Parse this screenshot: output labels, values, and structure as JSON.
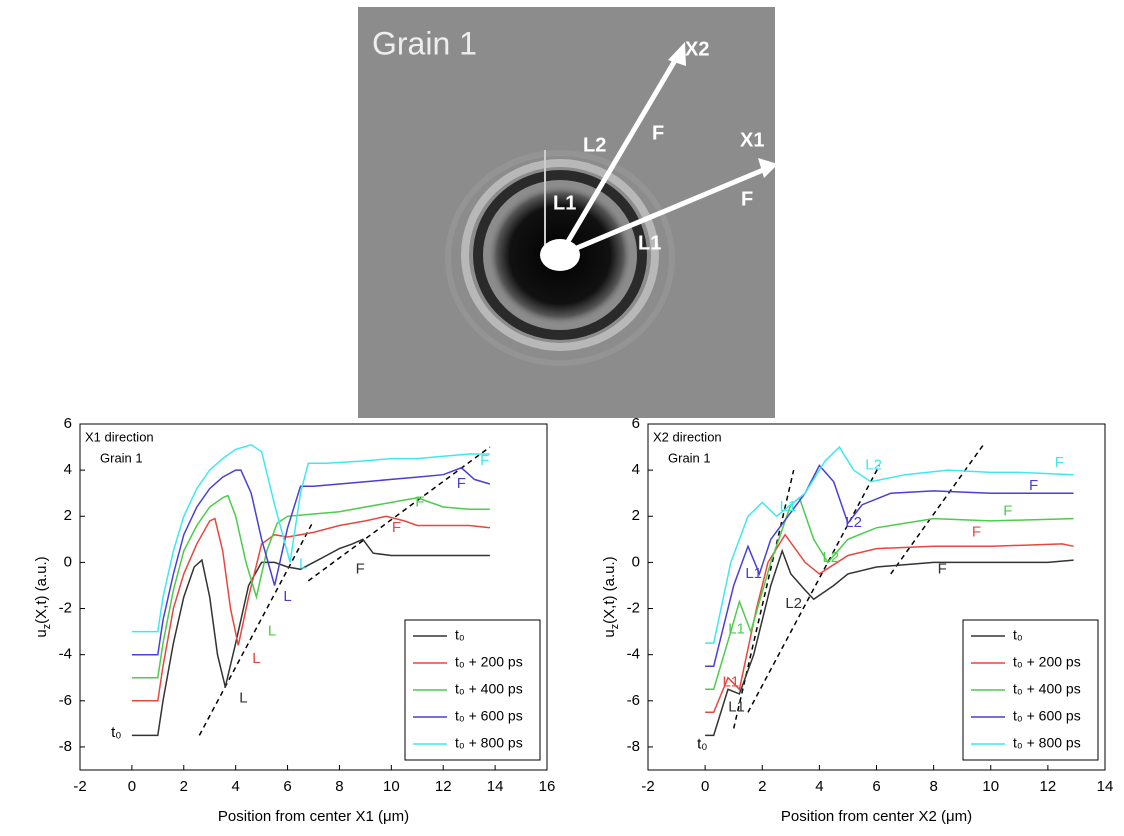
{
  "image": {
    "title": "Grain 1",
    "labels": [
      "X2",
      "X1",
      "L2",
      "F",
      "L1",
      "F",
      "L1"
    ]
  },
  "chart_data": [
    {
      "type": "line",
      "xlabel": "Position from center X1 (μm)",
      "ylabel": [
        "u",
        "z",
        "(X,t) (a.u.)"
      ],
      "inset": [
        "X1 direction",
        "Grain 1"
      ],
      "xlim": [
        -2,
        16
      ],
      "ylim": [
        -9,
        6
      ],
      "xticks": [
        -2,
        0,
        2,
        4,
        6,
        8,
        10,
        12,
        14,
        16
      ],
      "yticks": [
        -8,
        -6,
        -4,
        -2,
        0,
        2,
        4,
        6
      ],
      "series": [
        {
          "name": "t₀",
          "color": "#333333",
          "x": [
            0,
            1,
            1.2,
            1.6,
            2,
            2.4,
            2.7,
            3,
            3.3,
            3.6,
            4,
            4.5,
            5,
            5.5,
            6,
            6.5,
            7,
            7.5,
            8,
            8.5,
            8.9,
            9.3,
            10,
            11,
            12,
            13,
            13.8
          ],
          "values": [
            -7.5,
            -7.5,
            -6,
            -3.5,
            -1.5,
            -0.2,
            0.1,
            -1.5,
            -4,
            -5.4,
            -3.5,
            -1,
            0,
            0,
            -0.2,
            -0.3,
            0,
            0.3,
            0.6,
            0.8,
            1,
            0.4,
            0.3,
            0.3,
            0.3,
            0.3,
            0.3
          ]
        },
        {
          "name": "t₀ + 200 ps",
          "color": "#e8473f",
          "x": [
            0,
            1,
            1.2,
            1.6,
            2,
            2.5,
            3,
            3.2,
            3.5,
            3.8,
            4.1,
            4.5,
            5,
            5.5,
            6,
            7,
            8,
            9,
            9.8,
            10.5,
            11,
            12,
            13,
            13.8
          ],
          "values": [
            -6,
            -6,
            -4.5,
            -2,
            -0.5,
            0.8,
            1.8,
            1.9,
            0.5,
            -2,
            -3.6,
            -1.5,
            0.8,
            1.2,
            1.1,
            1.3,
            1.6,
            1.8,
            2,
            1.8,
            1.6,
            1.6,
            1.6,
            1.5
          ]
        },
        {
          "name": "t₀ + 400 ps",
          "color": "#4ccc4c",
          "x": [
            0,
            1,
            1.2,
            1.6,
            2,
            2.5,
            3,
            3.5,
            3.7,
            4,
            4.4,
            4.8,
            5.2,
            5.6,
            6,
            7,
            8,
            9,
            10,
            11,
            12,
            13,
            13.8
          ],
          "values": [
            -5,
            -5,
            -3.5,
            -1.2,
            0.5,
            1.6,
            2.4,
            2.8,
            2.9,
            2,
            0,
            -1.5,
            0.5,
            1.7,
            2,
            2.1,
            2.2,
            2.4,
            2.6,
            2.8,
            2.4,
            2.3,
            2.3
          ]
        },
        {
          "name": "t₀ + 600 ps",
          "color": "#4a3fd6",
          "x": [
            0,
            1,
            1.2,
            1.6,
            2,
            2.5,
            3,
            3.5,
            4,
            4.2,
            4.6,
            5,
            5.5,
            6,
            6.5,
            7,
            8,
            9,
            10,
            11,
            12,
            12.7,
            13.2,
            13.8
          ],
          "values": [
            -4,
            -4,
            -2.5,
            -0.5,
            1.2,
            2.4,
            3.2,
            3.7,
            4,
            4,
            3,
            1,
            -1,
            1.5,
            3.3,
            3.3,
            3.4,
            3.5,
            3.6,
            3.7,
            3.8,
            4.1,
            3.6,
            3.4
          ]
        },
        {
          "name": "t₀ + 800 ps",
          "color": "#3fe8f0",
          "x": [
            0,
            1,
            1.2,
            1.6,
            2,
            2.5,
            3,
            3.5,
            4,
            4.6,
            5,
            5.5,
            6.1,
            6.5,
            6.8,
            7.5,
            9,
            10,
            11,
            12,
            13,
            13.8
          ],
          "values": [
            -3,
            -3,
            -1.5,
            0.5,
            2,
            3.2,
            4,
            4.5,
            4.9,
            5.1,
            4.8,
            2.5,
            0,
            3,
            4.3,
            4.3,
            4.4,
            4.5,
            4.5,
            4.6,
            4.7,
            4.7
          ]
        }
      ],
      "annotations": [
        {
          "text": "L",
          "x": 4.3,
          "y": -5.9,
          "color": "#333333"
        },
        {
          "text": "L",
          "x": 4.8,
          "y": -4.2,
          "color": "#e8473f"
        },
        {
          "text": "L",
          "x": 5.4,
          "y": -3,
          "color": "#4ccc4c"
        },
        {
          "text": "L",
          "x": 6,
          "y": -1.5,
          "color": "#4a3fd6"
        },
        {
          "text": "L",
          "x": 6.6,
          "y": -0.1,
          "color": "#3fe8f0"
        },
        {
          "text": "F",
          "x": 8.8,
          "y": -0.3,
          "color": "#333333"
        },
        {
          "text": "F",
          "x": 10.2,
          "y": 1.5,
          "color": "#e8473f"
        },
        {
          "text": "F",
          "x": 11.1,
          "y": 2.6,
          "color": "#4ccc4c"
        },
        {
          "text": "F",
          "x": 12.7,
          "y": 3.4,
          "color": "#4a3fd6"
        },
        {
          "text": "F",
          "x": 13.6,
          "y": 4.4,
          "color": "#3fe8f0"
        },
        {
          "text": "t₀",
          "x": -0.6,
          "y": -7.4,
          "color": "#000000"
        }
      ],
      "guide_lines": [
        {
          "x": [
            2.6,
            7
          ],
          "y": [
            -7.5,
            1.8
          ]
        },
        {
          "x": [
            6.8,
            13.8
          ],
          "y": [
            -0.8,
            5
          ]
        }
      ]
    },
    {
      "type": "line",
      "xlabel": "Position from center X2 (μm)",
      "ylabel": [
        "u",
        "z",
        "(X,t) (a.u.)"
      ],
      "inset": [
        "X2 direction",
        "Grain 1"
      ],
      "xlim": [
        -2,
        14
      ],
      "ylim": [
        -9,
        6
      ],
      "xticks": [
        -2,
        0,
        2,
        4,
        6,
        8,
        10,
        12,
        14
      ],
      "yticks": [
        -8,
        -6,
        -4,
        -2,
        0,
        2,
        4,
        6
      ],
      "series": [
        {
          "name": "t₀",
          "color": "#333333",
          "x": [
            0,
            0.3,
            0.8,
            1.2,
            1.7,
            2.3,
            2.7,
            3,
            3.5,
            3.8,
            4.5,
            5,
            6,
            8,
            10,
            12,
            12.9
          ],
          "values": [
            -7.5,
            -7.5,
            -5.5,
            -5.7,
            -4,
            -1,
            0.5,
            -0.5,
            -1.2,
            -1.6,
            -1,
            -0.5,
            -0.2,
            0,
            0,
            0,
            0.1
          ]
        },
        {
          "name": "t₀ + 200 ps",
          "color": "#e8473f",
          "x": [
            0,
            0.3,
            0.8,
            1.2,
            1.8,
            2.2,
            2.8,
            3.5,
            4,
            5,
            6,
            8,
            10,
            12.5,
            12.9
          ],
          "values": [
            -6.5,
            -6.5,
            -5,
            -5.5,
            -2,
            0,
            1.2,
            0,
            -0.5,
            0.3,
            0.6,
            0.7,
            0.7,
            0.8,
            0.7
          ]
        },
        {
          "name": "t₀ + 400 ps",
          "color": "#4ccc4c",
          "x": [
            0,
            0.3,
            0.9,
            1.2,
            1.6,
            2.3,
            3,
            3.3,
            3.8,
            4.3,
            5,
            6,
            8,
            10,
            12.9
          ],
          "values": [
            -5.5,
            -5.5,
            -3,
            -1.7,
            -3,
            0,
            2.5,
            2.8,
            1,
            0,
            1,
            1.5,
            1.9,
            1.8,
            1.9
          ]
        },
        {
          "name": "t₀ + 600 ps",
          "color": "#4a3fd6",
          "x": [
            0,
            0.3,
            1,
            1.5,
            1.9,
            2.3,
            3.5,
            4,
            4.5,
            5,
            5.5,
            6.5,
            8,
            10,
            12.9
          ],
          "values": [
            -4.5,
            -4.5,
            -1,
            0.7,
            -0.5,
            1,
            3,
            4.2,
            3.5,
            1.7,
            2.5,
            3,
            3.1,
            3,
            3
          ]
        },
        {
          "name": "t₀ + 800 ps",
          "color": "#3fe8f0",
          "x": [
            0,
            0.3,
            0.9,
            1.5,
            2,
            2.5,
            3.5,
            4.2,
            4.7,
            5.2,
            5.8,
            7,
            8.5,
            10,
            11,
            12.9
          ],
          "values": [
            -3.5,
            -3.5,
            0,
            2,
            2.6,
            2,
            3,
            4.4,
            5,
            4,
            3.5,
            3.8,
            4,
            3.9,
            3.9,
            3.8
          ]
        }
      ],
      "annotations": [
        {
          "text": "L1",
          "x": 0.9,
          "y": -5.2,
          "color": "#e8473f"
        },
        {
          "text": "L1",
          "x": 1.1,
          "y": -6.3,
          "color": "#333333"
        },
        {
          "text": "L1",
          "x": 1.1,
          "y": -2.9,
          "color": "#4ccc4c"
        },
        {
          "text": "L1",
          "x": 1.7,
          "y": -0.5,
          "color": "#4a3fd6"
        },
        {
          "text": "L1",
          "x": 2.9,
          "y": 2.4,
          "color": "#3fe8f0"
        },
        {
          "text": "L2",
          "x": 3.1,
          "y": -1.8,
          "color": "#333333"
        },
        {
          "text": "L2",
          "x": 4.4,
          "y": 0.2,
          "color": "#4ccc4c"
        },
        {
          "text": "L2",
          "x": 5.2,
          "y": 1.7,
          "color": "#4a3fd6"
        },
        {
          "text": "L2",
          "x": 5.9,
          "y": 4.2,
          "color": "#3fe8f0"
        },
        {
          "text": "F",
          "x": 8.3,
          "y": -0.3,
          "color": "#333333"
        },
        {
          "text": "F",
          "x": 9.5,
          "y": 1.3,
          "color": "#e8473f"
        },
        {
          "text": "F",
          "x": 10.6,
          "y": 2.2,
          "color": "#4ccc4c"
        },
        {
          "text": "F",
          "x": 11.5,
          "y": 3.3,
          "color": "#4a3fd6"
        },
        {
          "text": "F",
          "x": 12.4,
          "y": 4.3,
          "color": "#3fe8f0"
        },
        {
          "text": "t₀",
          "x": -0.1,
          "y": -7.9,
          "color": "#000000"
        }
      ],
      "guide_lines": [
        {
          "x": [
            1,
            3.1
          ],
          "y": [
            -7.2,
            4
          ]
        },
        {
          "x": [
            1.5,
            6.1
          ],
          "y": [
            -6.5,
            4.2
          ]
        },
        {
          "x": [
            6.5,
            9.8
          ],
          "y": [
            -0.5,
            5.2
          ]
        }
      ]
    }
  ]
}
